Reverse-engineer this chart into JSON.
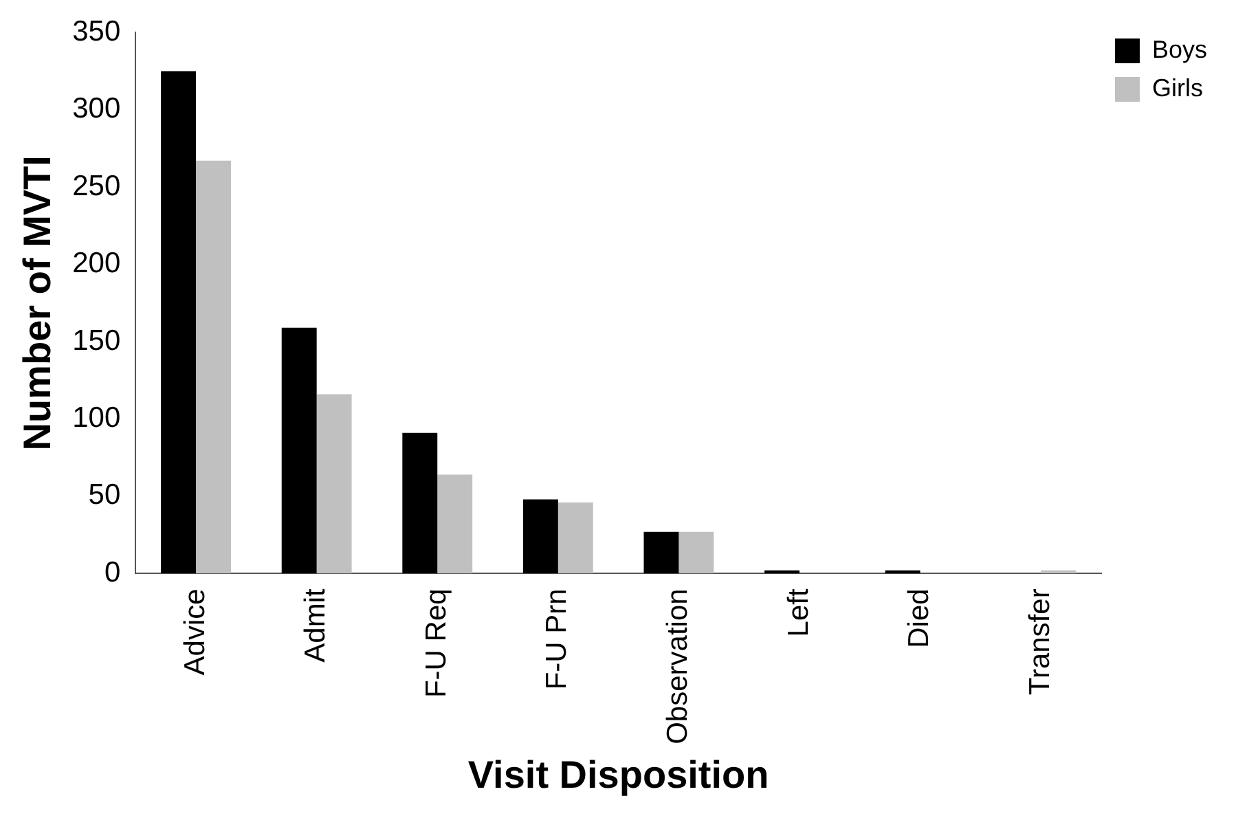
{
  "chart_data": {
    "type": "bar",
    "xlabel": "Visit Disposition",
    "ylabel": "Number of MVTI",
    "categories": [
      "Advice",
      "Admit",
      "F-U Req",
      "F-U Prn",
      "Observation",
      "Left",
      "Died",
      "Transfer"
    ],
    "series": [
      {
        "name": "Boys",
        "color": "#000000",
        "values": [
          325,
          159,
          91,
          48,
          27,
          2,
          2,
          0
        ]
      },
      {
        "name": "Girls",
        "color": "#c0c0c0",
        "values": [
          267,
          116,
          64,
          46,
          27,
          0,
          0,
          2
        ]
      }
    ],
    "ylim": [
      0,
      350
    ],
    "yticks": [
      0,
      50,
      100,
      150,
      200,
      250,
      300,
      350
    ],
    "grid": false,
    "legend": "top right"
  }
}
